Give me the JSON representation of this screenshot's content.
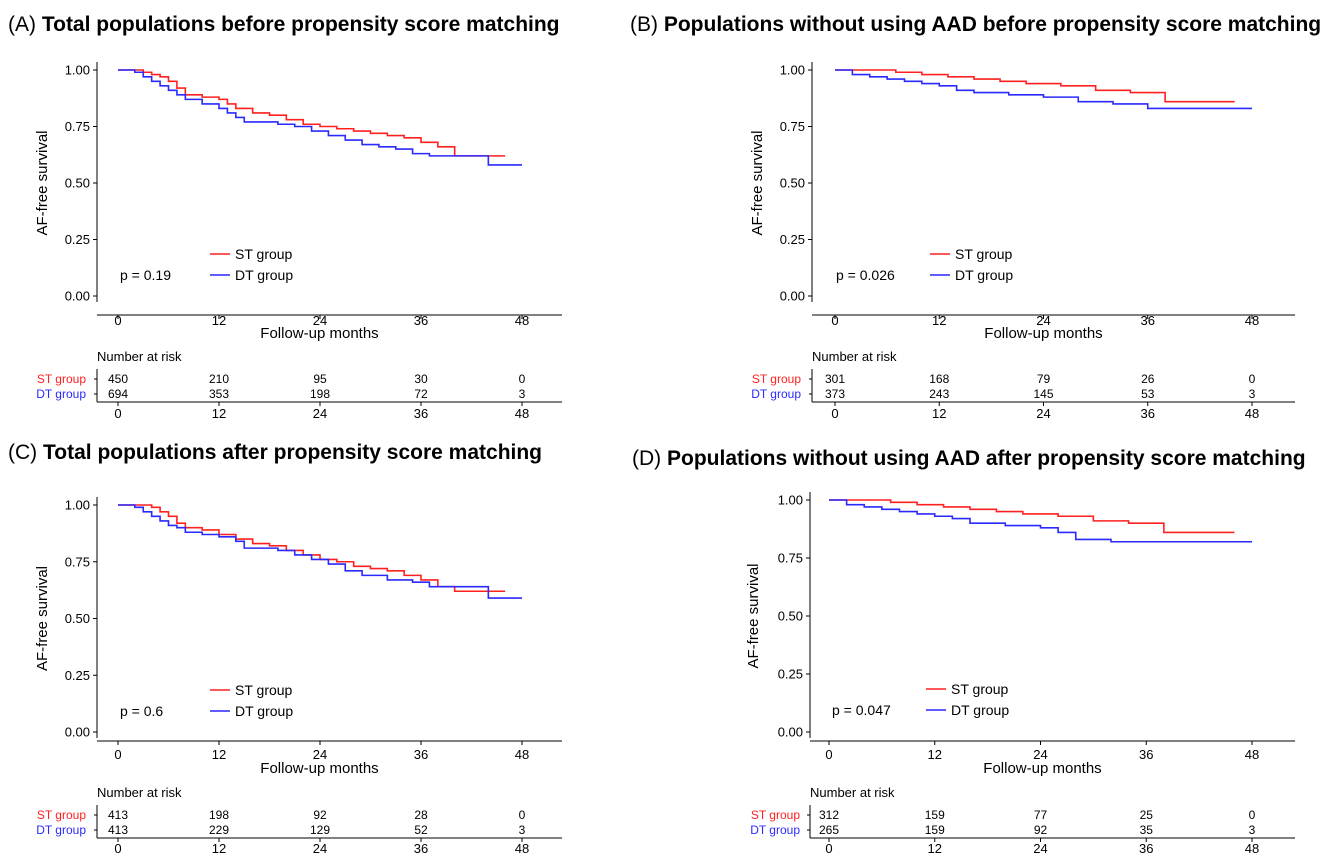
{
  "common": {
    "ylabel": "AF-free survival",
    "xlabel": "Follow-up months",
    "risk_title": "Number at risk",
    "x_ticks": [
      "0",
      "12",
      "24",
      "36",
      "48"
    ],
    "y_ticks": [
      "0.00",
      "0.25",
      "0.50",
      "0.75",
      "1.00"
    ],
    "series_colors": {
      "ST group": "#ff2020",
      "DT group": "#2a2aff"
    }
  },
  "chart_data": [
    {
      "type": "line",
      "panel_letter": "(A)",
      "title": "Total populations before propensity score matching",
      "xlabel": "Follow-up months",
      "ylabel": "AF-free survival",
      "xlim": [
        0,
        48
      ],
      "ylim": [
        0,
        1
      ],
      "x_ticks": [
        "0",
        "12",
        "24",
        "36",
        "48"
      ],
      "y_ticks": [
        "0.00",
        "0.25",
        "0.50",
        "0.75",
        "1.00"
      ],
      "grid": false,
      "legend": "lower-left",
      "p_value": "p = 0.19",
      "series": [
        {
          "name": "ST group",
          "color": "#ff2020",
          "x": [
            0,
            2,
            3,
            4,
            5,
            6,
            7,
            8,
            10,
            12,
            13,
            14,
            16,
            18,
            20,
            22,
            24,
            26,
            28,
            30,
            32,
            34,
            36,
            38,
            40,
            44,
            46
          ],
          "y": [
            1.0,
            1.0,
            0.99,
            0.98,
            0.97,
            0.95,
            0.92,
            0.89,
            0.88,
            0.87,
            0.85,
            0.83,
            0.81,
            0.8,
            0.78,
            0.76,
            0.75,
            0.74,
            0.73,
            0.72,
            0.71,
            0.7,
            0.68,
            0.66,
            0.62,
            0.62,
            0.62
          ]
        },
        {
          "name": "DT group",
          "color": "#2a2aff",
          "x": [
            0,
            2,
            3,
            4,
            5,
            6,
            7,
            8,
            10,
            12,
            13,
            14,
            15,
            17,
            19,
            21,
            23,
            25,
            27,
            29,
            31,
            33,
            35,
            37,
            40,
            44,
            48
          ],
          "y": [
            1.0,
            0.99,
            0.97,
            0.95,
            0.93,
            0.91,
            0.89,
            0.87,
            0.85,
            0.83,
            0.81,
            0.79,
            0.77,
            0.77,
            0.76,
            0.75,
            0.73,
            0.71,
            0.69,
            0.67,
            0.66,
            0.65,
            0.63,
            0.62,
            0.62,
            0.58,
            0.58
          ]
        }
      ],
      "risk_table": [
        {
          "name": "ST group",
          "values": [
            "450",
            "210",
            "95",
            "30",
            "0"
          ]
        },
        {
          "name": "DT group",
          "values": [
            "694",
            "353",
            "198",
            "72",
            "3"
          ]
        }
      ]
    },
    {
      "type": "line",
      "panel_letter": "(B)",
      "title": "Populations without using AAD before propensity score matching",
      "xlabel": "Follow-up months",
      "ylabel": "AF-free survival",
      "xlim": [
        0,
        48
      ],
      "ylim": [
        0,
        1
      ],
      "x_ticks": [
        "0",
        "12",
        "24",
        "36",
        "48"
      ],
      "y_ticks": [
        "0.00",
        "0.25",
        "0.50",
        "0.75",
        "1.00"
      ],
      "grid": false,
      "legend": "lower-left",
      "p_value": "p = 0.026",
      "series": [
        {
          "name": "ST group",
          "color": "#ff2020",
          "x": [
            0,
            4,
            7,
            10,
            13,
            16,
            19,
            22,
            26,
            30,
            34,
            38,
            42,
            46
          ],
          "y": [
            1.0,
            1.0,
            0.99,
            0.98,
            0.97,
            0.96,
            0.95,
            0.94,
            0.93,
            0.91,
            0.9,
            0.86,
            0.86,
            0.86
          ]
        },
        {
          "name": "DT group",
          "color": "#2a2aff",
          "x": [
            0,
            2,
            4,
            6,
            8,
            10,
            12,
            14,
            16,
            20,
            24,
            28,
            32,
            36,
            42,
            48
          ],
          "y": [
            1.0,
            0.98,
            0.97,
            0.96,
            0.95,
            0.94,
            0.93,
            0.91,
            0.9,
            0.89,
            0.88,
            0.86,
            0.85,
            0.83,
            0.83,
            0.83
          ]
        }
      ],
      "risk_table": [
        {
          "name": "ST group",
          "values": [
            "301",
            "168",
            "79",
            "26",
            "0"
          ]
        },
        {
          "name": "DT group",
          "values": [
            "373",
            "243",
            "145",
            "53",
            "3"
          ]
        }
      ]
    },
    {
      "type": "line",
      "panel_letter": "(C)",
      "title": "Total populations after propensity score matching",
      "xlabel": "Follow-up months",
      "ylabel": "AF-free survival",
      "xlim": [
        0,
        48
      ],
      "ylim": [
        0,
        1
      ],
      "x_ticks": [
        "0",
        "12",
        "24",
        "36",
        "48"
      ],
      "y_ticks": [
        "0.00",
        "0.25",
        "0.50",
        "0.75",
        "1.00"
      ],
      "grid": false,
      "legend": "lower-left",
      "p_value": "p = 0.6",
      "series": [
        {
          "name": "ST group",
          "color": "#ff2020",
          "x": [
            0,
            3,
            4,
            5,
            6,
            7,
            8,
            10,
            12,
            14,
            16,
            18,
            20,
            22,
            24,
            26,
            28,
            30,
            32,
            34,
            36,
            38,
            40,
            44,
            46
          ],
          "y": [
            1.0,
            1.0,
            0.99,
            0.97,
            0.95,
            0.92,
            0.9,
            0.89,
            0.87,
            0.85,
            0.83,
            0.82,
            0.8,
            0.78,
            0.76,
            0.75,
            0.73,
            0.72,
            0.71,
            0.69,
            0.67,
            0.64,
            0.62,
            0.62,
            0.62
          ]
        },
        {
          "name": "DT group",
          "color": "#2a2aff",
          "x": [
            0,
            2,
            3,
            4,
            5,
            6,
            7,
            8,
            10,
            12,
            14,
            15,
            17,
            19,
            21,
            23,
            25,
            27,
            29,
            32,
            35,
            37,
            41,
            44,
            48
          ],
          "y": [
            1.0,
            0.99,
            0.97,
            0.95,
            0.93,
            0.91,
            0.9,
            0.88,
            0.87,
            0.86,
            0.84,
            0.81,
            0.81,
            0.8,
            0.78,
            0.76,
            0.74,
            0.71,
            0.69,
            0.67,
            0.66,
            0.64,
            0.64,
            0.59,
            0.59
          ]
        }
      ],
      "risk_table": [
        {
          "name": "ST group",
          "values": [
            "413",
            "198",
            "92",
            "28",
            "0"
          ]
        },
        {
          "name": "DT group",
          "values": [
            "413",
            "229",
            "129",
            "52",
            "3"
          ]
        }
      ]
    },
    {
      "type": "line",
      "panel_letter": "(D)",
      "title": "Populations without using AAD after propensity score matching",
      "xlabel": "Follow-up months",
      "ylabel": "AF-free survival",
      "xlim": [
        0,
        48
      ],
      "ylim": [
        0,
        1
      ],
      "x_ticks": [
        "0",
        "12",
        "24",
        "36",
        "48"
      ],
      "y_ticks": [
        "0.00",
        "0.25",
        "0.50",
        "0.75",
        "1.00"
      ],
      "grid": false,
      "legend": "lower-left",
      "p_value": "p = 0.047",
      "series": [
        {
          "name": "ST group",
          "color": "#ff2020",
          "x": [
            0,
            4,
            7,
            10,
            13,
            16,
            19,
            22,
            26,
            30,
            34,
            38,
            42,
            46
          ],
          "y": [
            1.0,
            1.0,
            0.99,
            0.98,
            0.97,
            0.96,
            0.95,
            0.94,
            0.93,
            0.91,
            0.9,
            0.86,
            0.86,
            0.86
          ]
        },
        {
          "name": "DT group",
          "color": "#2a2aff",
          "x": [
            0,
            2,
            4,
            6,
            8,
            10,
            12,
            14,
            16,
            20,
            24,
            26,
            28,
            32,
            40,
            48
          ],
          "y": [
            1.0,
            0.98,
            0.97,
            0.96,
            0.95,
            0.94,
            0.93,
            0.92,
            0.9,
            0.89,
            0.88,
            0.86,
            0.83,
            0.82,
            0.82,
            0.82
          ]
        }
      ],
      "risk_table": [
        {
          "name": "ST group",
          "values": [
            "312",
            "159",
            "77",
            "25",
            "0"
          ]
        },
        {
          "name": "DT group",
          "values": [
            "265",
            "159",
            "92",
            "35",
            "3"
          ]
        }
      ]
    }
  ]
}
